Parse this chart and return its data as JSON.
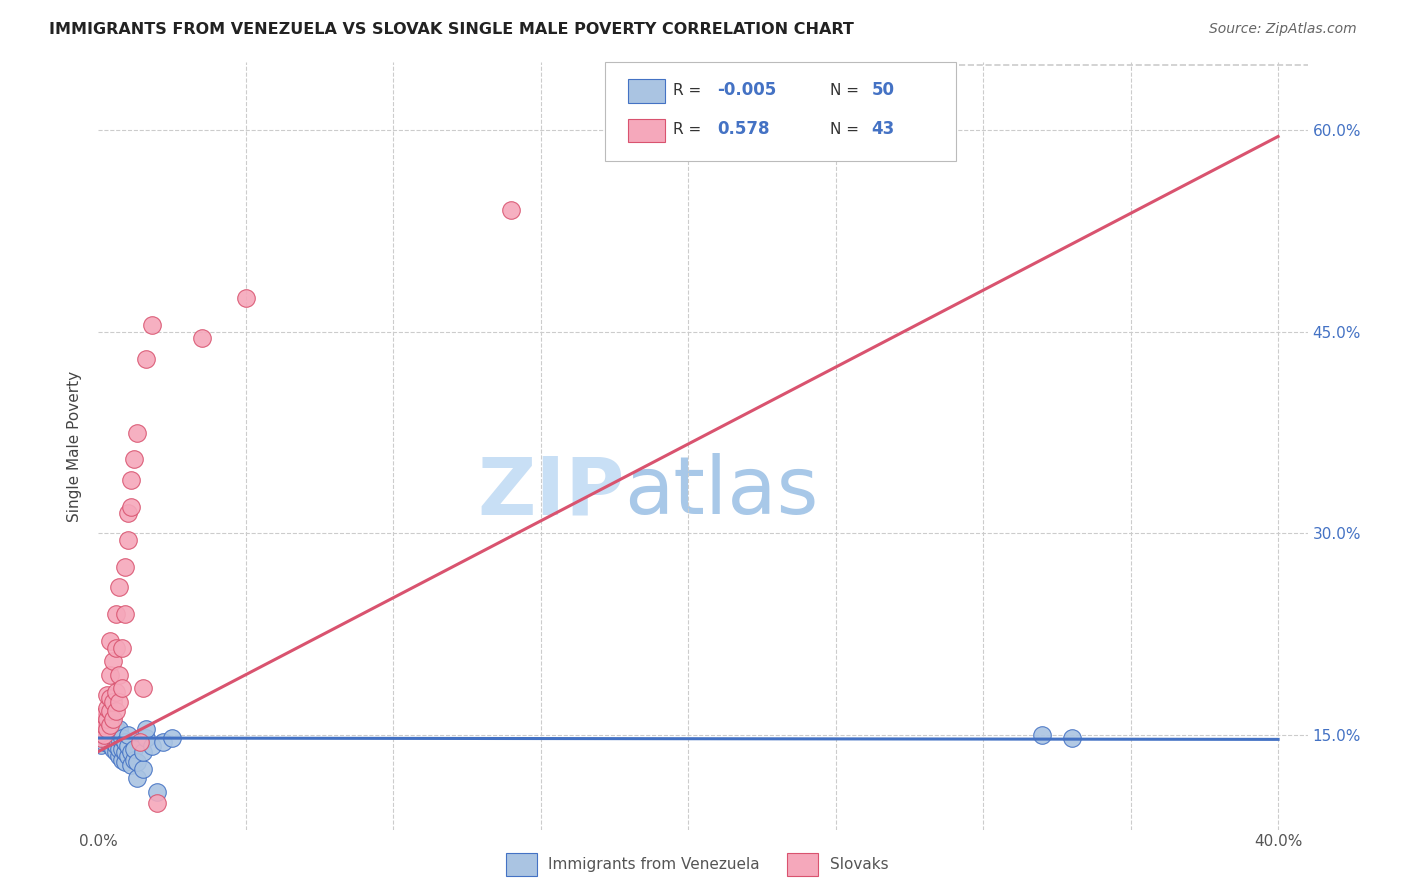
{
  "title": "IMMIGRANTS FROM VENEZUELA VS SLOVAK SINGLE MALE POVERTY CORRELATION CHART",
  "source": "Source: ZipAtlas.com",
  "ylabel": "Single Male Poverty",
  "xlim": [
    0.0,
    0.41
  ],
  "ylim": [
    0.08,
    0.65
  ],
  "color_blue": "#aac4e2",
  "color_pink": "#f5a8bb",
  "color_blue_edge": "#4472C4",
  "color_pink_edge": "#d9536f",
  "color_line_blue": "#4472C4",
  "color_line_pink": "#d9536f",
  "color_diag": "#cccccc",
  "color_grid": "#cccccc",
  "color_right_tick": "#4472C4",
  "scatter_blue": [
    [
      0.001,
      0.148
    ],
    [
      0.001,
      0.152
    ],
    [
      0.001,
      0.143
    ],
    [
      0.002,
      0.15
    ],
    [
      0.002,
      0.145
    ],
    [
      0.002,
      0.155
    ],
    [
      0.003,
      0.147
    ],
    [
      0.003,
      0.152
    ],
    [
      0.003,
      0.16
    ],
    [
      0.004,
      0.143
    ],
    [
      0.004,
      0.148
    ],
    [
      0.004,
      0.155
    ],
    [
      0.004,
      0.162
    ],
    [
      0.005,
      0.14
    ],
    [
      0.005,
      0.145
    ],
    [
      0.005,
      0.15
    ],
    [
      0.005,
      0.158
    ],
    [
      0.006,
      0.138
    ],
    [
      0.006,
      0.143
    ],
    [
      0.006,
      0.148
    ],
    [
      0.006,
      0.155
    ],
    [
      0.007,
      0.135
    ],
    [
      0.007,
      0.14
    ],
    [
      0.007,
      0.148
    ],
    [
      0.007,
      0.155
    ],
    [
      0.008,
      0.132
    ],
    [
      0.008,
      0.14
    ],
    [
      0.008,
      0.148
    ],
    [
      0.009,
      0.13
    ],
    [
      0.009,
      0.138
    ],
    [
      0.009,
      0.145
    ],
    [
      0.01,
      0.135
    ],
    [
      0.01,
      0.142
    ],
    [
      0.01,
      0.15
    ],
    [
      0.011,
      0.128
    ],
    [
      0.011,
      0.138
    ],
    [
      0.012,
      0.132
    ],
    [
      0.012,
      0.14
    ],
    [
      0.013,
      0.118
    ],
    [
      0.013,
      0.13
    ],
    [
      0.015,
      0.125
    ],
    [
      0.015,
      0.138
    ],
    [
      0.016,
      0.148
    ],
    [
      0.016,
      0.155
    ],
    [
      0.018,
      0.142
    ],
    [
      0.02,
      0.108
    ],
    [
      0.022,
      0.145
    ],
    [
      0.025,
      0.148
    ],
    [
      0.32,
      0.15
    ],
    [
      0.33,
      0.148
    ]
  ],
  "scatter_pink": [
    [
      0.001,
      0.148
    ],
    [
      0.001,
      0.152
    ],
    [
      0.001,
      0.16
    ],
    [
      0.002,
      0.15
    ],
    [
      0.002,
      0.158
    ],
    [
      0.002,
      0.165
    ],
    [
      0.003,
      0.155
    ],
    [
      0.003,
      0.162
    ],
    [
      0.003,
      0.17
    ],
    [
      0.003,
      0.18
    ],
    [
      0.004,
      0.158
    ],
    [
      0.004,
      0.168
    ],
    [
      0.004,
      0.178
    ],
    [
      0.004,
      0.195
    ],
    [
      0.004,
      0.22
    ],
    [
      0.005,
      0.162
    ],
    [
      0.005,
      0.175
    ],
    [
      0.005,
      0.205
    ],
    [
      0.006,
      0.168
    ],
    [
      0.006,
      0.182
    ],
    [
      0.006,
      0.215
    ],
    [
      0.006,
      0.24
    ],
    [
      0.007,
      0.175
    ],
    [
      0.007,
      0.195
    ],
    [
      0.007,
      0.26
    ],
    [
      0.008,
      0.185
    ],
    [
      0.008,
      0.215
    ],
    [
      0.009,
      0.24
    ],
    [
      0.009,
      0.275
    ],
    [
      0.01,
      0.295
    ],
    [
      0.01,
      0.315
    ],
    [
      0.011,
      0.32
    ],
    [
      0.011,
      0.34
    ],
    [
      0.012,
      0.355
    ],
    [
      0.013,
      0.375
    ],
    [
      0.014,
      0.145
    ],
    [
      0.015,
      0.185
    ],
    [
      0.016,
      0.43
    ],
    [
      0.018,
      0.455
    ],
    [
      0.02,
      0.1
    ],
    [
      0.035,
      0.445
    ],
    [
      0.05,
      0.475
    ],
    [
      0.14,
      0.54
    ]
  ],
  "blue_line": [
    [
      0.0,
      0.148
    ],
    [
      0.4,
      0.147
    ]
  ],
  "pink_line": [
    [
      0.0,
      0.138
    ],
    [
      0.4,
      0.595
    ]
  ],
  "diag_line": [
    [
      0.22,
      0.648
    ],
    [
      0.41,
      0.648
    ]
  ],
  "x_ticks": [
    0.0,
    0.05,
    0.1,
    0.15,
    0.2,
    0.25,
    0.3,
    0.35,
    0.4
  ],
  "x_tick_labels": [
    "0.0%",
    "",
    "",
    "",
    "",
    "",
    "",
    "",
    "40.0%"
  ],
  "y_ticks_right": [
    0.15,
    0.3,
    0.45,
    0.6
  ],
  "y_tick_labels_right": [
    "15.0%",
    "30.0%",
    "45.0%",
    "60.0%"
  ],
  "watermark_zip": "ZIP",
  "watermark_atlas": "atlas",
  "legend_items": [
    {
      "color_fill": "#aac4e2",
      "color_edge": "#4472C4",
      "r": "-0.005",
      "n": "50"
    },
    {
      "color_fill": "#f5a8bb",
      "color_edge": "#d9536f",
      "r": "0.578",
      "n": "43"
    }
  ],
  "bottom_legend": [
    {
      "label": "Immigrants from Venezuela",
      "color_fill": "#aac4e2",
      "color_edge": "#4472C4"
    },
    {
      "label": "Slovaks",
      "color_fill": "#f5a8bb",
      "color_edge": "#d9536f"
    }
  ]
}
